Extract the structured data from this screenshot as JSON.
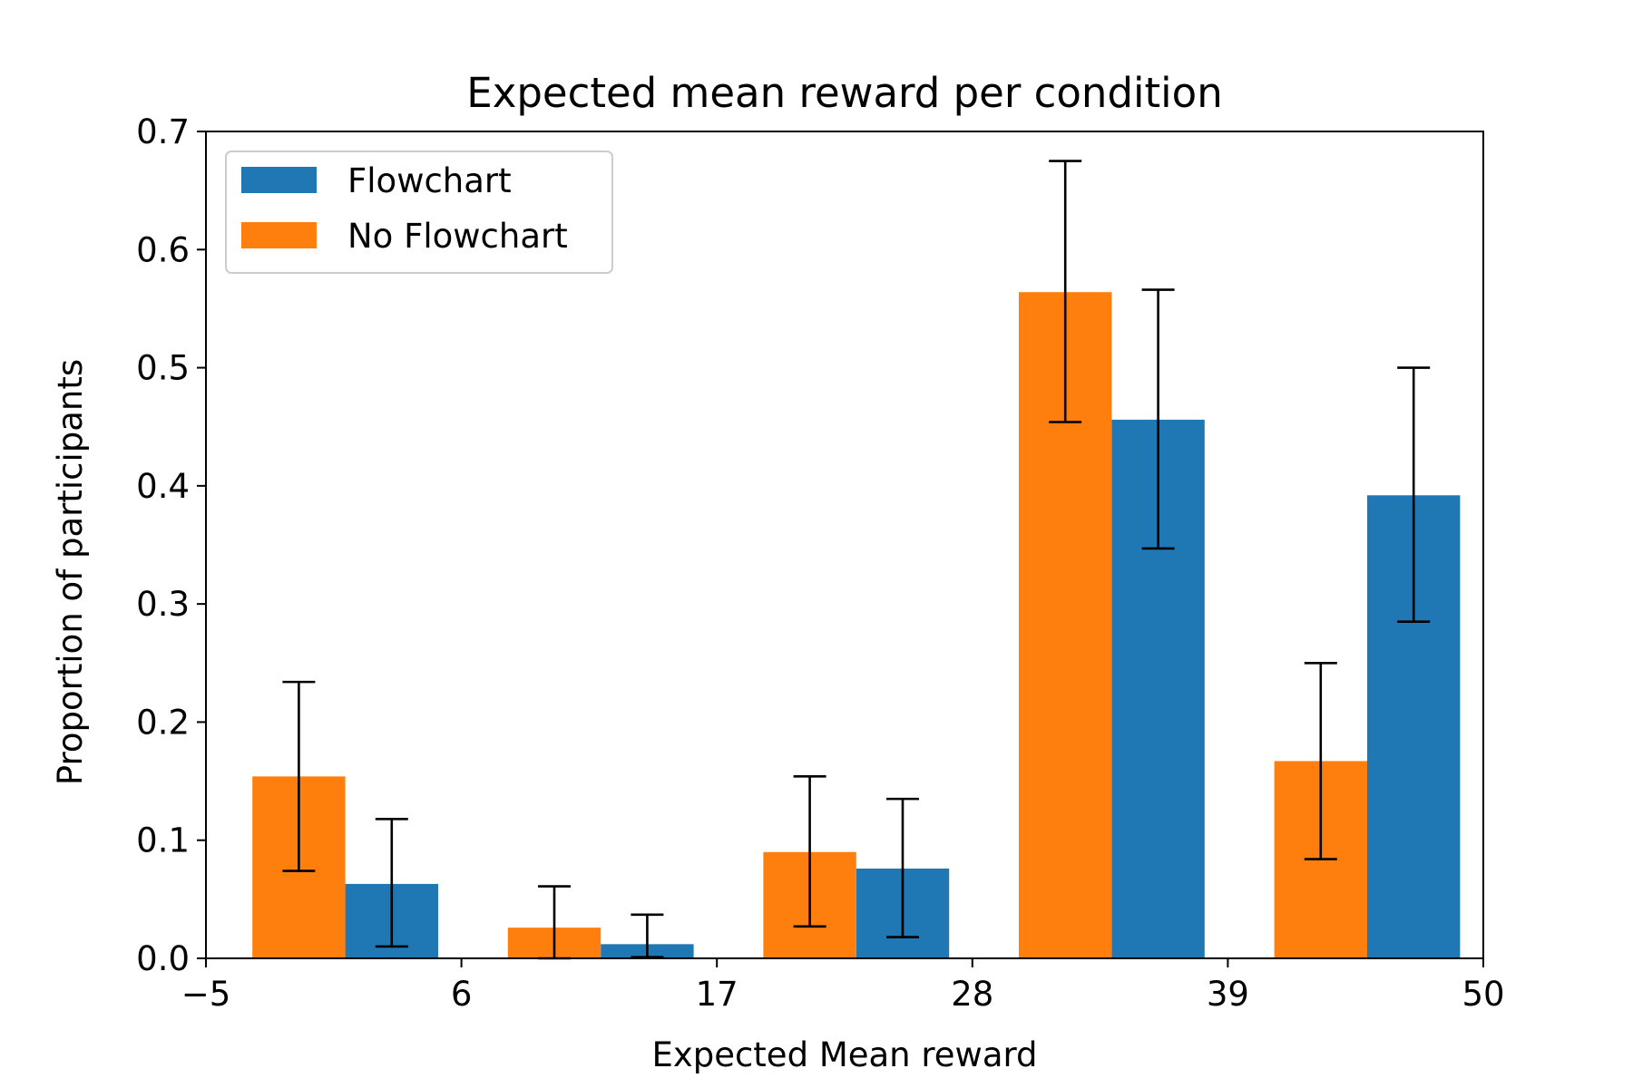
{
  "chart_data": {
    "type": "bar",
    "title": "Expected mean reward per condition",
    "xlabel": "Expected Mean reward",
    "ylabel": "Proportion of participants",
    "xlim": [
      -5,
      50
    ],
    "ylim": [
      0,
      0.7
    ],
    "xticks": [
      -5,
      6,
      17,
      28,
      39,
      50
    ],
    "xtick_labels": [
      "−5",
      "6",
      "17",
      "28",
      "39",
      "50"
    ],
    "yticks": [
      0.0,
      0.1,
      0.2,
      0.3,
      0.4,
      0.5,
      0.6,
      0.7
    ],
    "ytick_labels": [
      "0.0",
      "0.1",
      "0.2",
      "0.3",
      "0.4",
      "0.5",
      "0.6",
      "0.7"
    ],
    "legend_position": "top-left",
    "grid": false,
    "bar_width": 4,
    "series": [
      {
        "name": "Flowchart",
        "color": "#1f77b4",
        "x": [
          3,
          14,
          25,
          36,
          47
        ],
        "values": [
          0.063,
          0.012,
          0.076,
          0.456,
          0.392
        ],
        "err_low": [
          0.01,
          0.001,
          0.018,
          0.347,
          0.285
        ],
        "err_high": [
          0.118,
          0.037,
          0.135,
          0.566,
          0.5
        ]
      },
      {
        "name": "No Flowchart",
        "color": "#ff7f0e",
        "x": [
          -1,
          10,
          21,
          32,
          43
        ],
        "values": [
          0.154,
          0.026,
          0.09,
          0.564,
          0.167
        ],
        "err_low": [
          0.074,
          0.0,
          0.027,
          0.454,
          0.084
        ],
        "err_high": [
          0.234,
          0.061,
          0.154,
          0.675,
          0.25
        ]
      }
    ]
  }
}
